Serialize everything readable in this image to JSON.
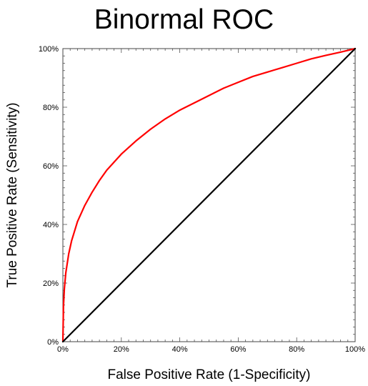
{
  "chart_data": {
    "type": "line",
    "title": "Binormal ROC",
    "xlabel": "False Positive Rate (1-Specificity)",
    "ylabel": "True Positive Rate (Sensitivity)",
    "xlim": [
      0,
      100
    ],
    "ylim": [
      0,
      100
    ],
    "x_ticks": [
      "0%",
      "20%",
      "40%",
      "60%",
      "80%",
      "100%"
    ],
    "y_ticks": [
      "0%",
      "20%",
      "40%",
      "60%",
      "80%",
      "100%"
    ],
    "grid": false,
    "legend": "none",
    "series": [
      {
        "color": "#ff0000",
        "x": [
          0,
          0.2,
          0.5,
          1,
          2,
          3,
          5,
          7.5,
          10,
          12.5,
          15,
          20,
          25,
          30,
          35,
          40,
          45,
          50,
          55,
          60,
          65,
          70,
          75,
          80,
          85,
          90,
          95,
          100
        ],
        "y": [
          0,
          12,
          18,
          23.5,
          30,
          34.5,
          41,
          46.5,
          51,
          55,
          58.5,
          64,
          68.5,
          72.5,
          76,
          79,
          81.5,
          84,
          86.5,
          88.5,
          90.5,
          92,
          93.5,
          95,
          96.5,
          97.7,
          98.8,
          100
        ]
      },
      {
        "color": "#000000",
        "x": [
          0,
          100
        ],
        "y": [
          0,
          100
        ]
      }
    ]
  }
}
